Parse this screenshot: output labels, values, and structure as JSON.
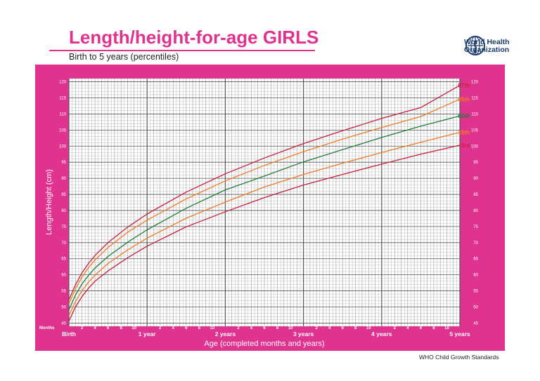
{
  "header": {
    "title": "Length/height-for-age GIRLS",
    "subtitle": "Birth to 5 years (percentiles)",
    "org_line1": "World Health",
    "org_line2": "Organization",
    "footer": "WHO Child Growth Standards"
  },
  "colors": {
    "brand_pink": "#e0338f",
    "plot_bg": "#ffffff",
    "red": "#c81e3c",
    "orange": "#f07a2a",
    "green": "#1f7d3a"
  },
  "chart_data": {
    "type": "line",
    "ylabel": "Length/Height (cm)",
    "xlabel": "Age (completed months and years)",
    "xlim": [
      0,
      60
    ],
    "ylim": [
      44,
      121
    ],
    "x_units_label": "Months",
    "y_ticks": [
      45,
      50,
      55,
      60,
      65,
      70,
      75,
      80,
      85,
      90,
      95,
      100,
      105,
      110,
      115,
      120
    ],
    "month_ticks": [
      {
        "x": 2,
        "label": "2"
      },
      {
        "x": 4,
        "label": "4"
      },
      {
        "x": 6,
        "label": "6"
      },
      {
        "x": 8,
        "label": "8"
      },
      {
        "x": 10,
        "label": "10"
      },
      {
        "x": 14,
        "label": "2"
      },
      {
        "x": 16,
        "label": "4"
      },
      {
        "x": 18,
        "label": "6"
      },
      {
        "x": 20,
        "label": "8"
      },
      {
        "x": 22,
        "label": "10"
      },
      {
        "x": 26,
        "label": "2"
      },
      {
        "x": 28,
        "label": "4"
      },
      {
        "x": 30,
        "label": "6"
      },
      {
        "x": 32,
        "label": "8"
      },
      {
        "x": 34,
        "label": "10"
      },
      {
        "x": 38,
        "label": "2"
      },
      {
        "x": 40,
        "label": "4"
      },
      {
        "x": 42,
        "label": "6"
      },
      {
        "x": 44,
        "label": "8"
      },
      {
        "x": 46,
        "label": "10"
      },
      {
        "x": 50,
        "label": "2"
      },
      {
        "x": 52,
        "label": "4"
      },
      {
        "x": 54,
        "label": "6"
      },
      {
        "x": 56,
        "label": "8"
      },
      {
        "x": 58,
        "label": "10"
      }
    ],
    "year_ticks": [
      {
        "x": 0,
        "label": "Birth"
      },
      {
        "x": 12,
        "label": "1 year"
      },
      {
        "x": 24,
        "label": "2 years"
      },
      {
        "x": 36,
        "label": "3 years"
      },
      {
        "x": 48,
        "label": "4 years"
      },
      {
        "x": 60,
        "label": "5 years"
      }
    ],
    "x": [
      0,
      1,
      2,
      3,
      4,
      6,
      9,
      12,
      18,
      24,
      30,
      36,
      42,
      48,
      54,
      60
    ],
    "series": [
      {
        "name": "97th",
        "color": "#c81e3c",
        "values": [
          52.2,
          56.9,
          60.6,
          63.5,
          66.0,
          70.0,
          74.8,
          78.9,
          85.7,
          91.4,
          96.3,
          100.8,
          104.8,
          108.6,
          112.0,
          118.9
        ]
      },
      {
        "name": "85th",
        "color": "#f07a2a",
        "values": [
          51.0,
          55.6,
          59.3,
          62.2,
          64.6,
          68.5,
          73.2,
          77.0,
          83.6,
          89.2,
          94.0,
          98.3,
          102.2,
          105.8,
          109.2,
          114.6
        ]
      },
      {
        "name": "50th",
        "color": "#1f7d3a",
        "values": [
          49.1,
          53.7,
          57.1,
          59.8,
          62.1,
          65.7,
          70.1,
          74.0,
          80.7,
          86.4,
          90.7,
          95.1,
          98.9,
          102.7,
          106.2,
          109.4
        ]
      },
      {
        "name": "15th",
        "color": "#f07a2a",
        "values": [
          47.3,
          51.7,
          55.0,
          57.7,
          59.9,
          63.5,
          67.7,
          71.4,
          77.6,
          82.6,
          87.3,
          91.2,
          94.7,
          98.0,
          101.2,
          104.3
        ]
      },
      {
        "name": "3rd",
        "color": "#c81e3c",
        "values": [
          45.6,
          50.0,
          53.2,
          55.8,
          58.0,
          61.2,
          65.3,
          68.9,
          74.9,
          79.6,
          84.0,
          87.9,
          91.2,
          94.4,
          97.5,
          100.3
        ]
      }
    ]
  }
}
